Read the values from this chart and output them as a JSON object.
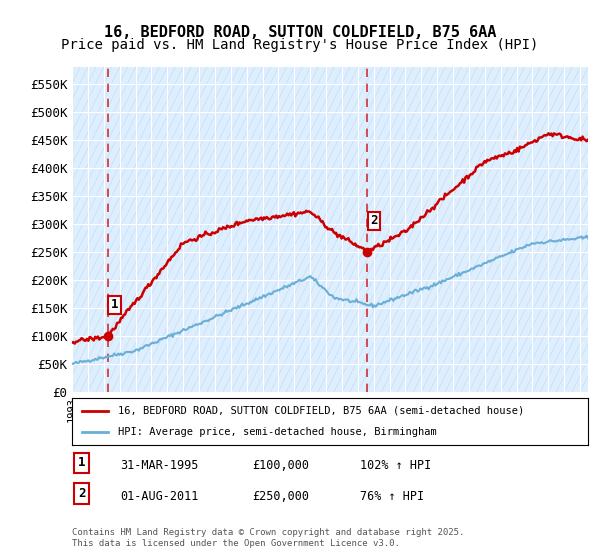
{
  "title_line1": "16, BEDFORD ROAD, SUTTON COLDFIELD, B75 6AA",
  "title_line2": "Price paid vs. HM Land Registry's House Price Index (HPI)",
  "ylabel_ticks": [
    "£0",
    "£50K",
    "£100K",
    "£150K",
    "£200K",
    "£250K",
    "£300K",
    "£350K",
    "£400K",
    "£450K",
    "£500K",
    "£550K"
  ],
  "ytick_values": [
    0,
    50000,
    100000,
    150000,
    200000,
    250000,
    300000,
    350000,
    400000,
    450000,
    500000,
    550000
  ],
  "ylim": [
    0,
    580000
  ],
  "xlim_start": 1993.0,
  "xlim_end": 2025.5,
  "sale1_x": 1995.25,
  "sale1_y": 100000,
  "sale1_label": "1",
  "sale2_x": 2011.58,
  "sale2_y": 250000,
  "sale2_label": "2",
  "vline1_x": 1995.25,
  "vline2_x": 2011.58,
  "hpi_line_color": "#6baed6",
  "sale_line_color": "#cc0000",
  "vline_color": "#cc0000",
  "background_color": "#e8f4f8",
  "plot_bg_color": "#e8f4f8",
  "legend_entry1": "16, BEDFORD ROAD, SUTTON COLDFIELD, B75 6AA (semi-detached house)",
  "legend_entry2": "HPI: Average price, semi-detached house, Birmingham",
  "annotation1_box": "31-MAR-1995",
  "annotation1_price": "£100,000",
  "annotation1_hpi": "102% ↑ HPI",
  "annotation2_box": "01-AUG-2011",
  "annotation2_price": "£250,000",
  "annotation2_hpi": "76% ↑ HPI",
  "footer": "Contains HM Land Registry data © Crown copyright and database right 2025.\nThis data is licensed under the Open Government Licence v3.0.",
  "title_fontsize": 11,
  "subtitle_fontsize": 10,
  "tick_fontsize": 9
}
